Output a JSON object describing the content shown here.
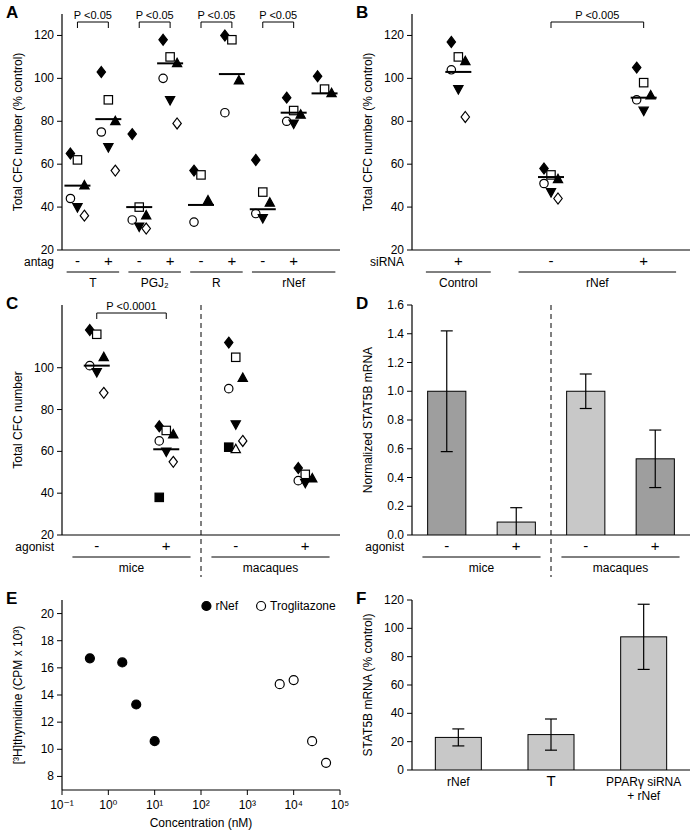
{
  "chart_data": [
    {
      "panel": "A",
      "type": "dot",
      "ylabel": "Total CFC number (% control)",
      "xlabel": "antag",
      "categories": [
        "-",
        "+",
        "-",
        "+",
        "-",
        "+",
        "-",
        "+",
        null
      ],
      "groups": [
        {
          "label": "T",
          "categories": [
            0,
            1
          ]
        },
        {
          "label": "PGJ₂",
          "categories": [
            2,
            3
          ]
        },
        {
          "label": "R",
          "categories": [
            4,
            5
          ]
        },
        {
          "label": "rNef",
          "categories": [
            6,
            7,
            8
          ]
        }
      ],
      "points": [
        [
          65,
          62,
          50,
          44,
          40,
          36
        ],
        [
          103,
          90,
          80,
          75,
          68,
          57
        ],
        [
          74,
          40,
          36,
          34,
          31,
          30
        ],
        [
          118,
          110,
          107,
          100,
          90,
          79
        ],
        [
          57,
          55,
          43,
          33
        ],
        [
          120,
          118,
          99,
          84
        ],
        [
          62,
          47,
          42,
          37,
          35
        ],
        [
          91,
          85,
          83,
          80,
          79
        ],
        [
          101,
          95,
          93
        ]
      ],
      "means": [
        50,
        81,
        40,
        107,
        41,
        102,
        39,
        84,
        93
      ],
      "comparisons": [
        {
          "label": "P <0.05",
          "between": [
            0,
            1
          ]
        },
        {
          "label": "P <0.05",
          "between": [
            2,
            3
          ]
        },
        {
          "label": "P <0.05",
          "between": [
            4,
            5
          ]
        },
        {
          "label": "P <0.05",
          "between": [
            6,
            7
          ]
        }
      ],
      "ylim": [
        20,
        130
      ],
      "yticks": [
        20,
        40,
        60,
        80,
        100,
        120
      ]
    },
    {
      "panel": "B",
      "type": "dot",
      "ylabel": "Total CFC number (% control)",
      "xlabel": "siRNA",
      "categories": [
        "+",
        "-",
        "+"
      ],
      "groups": [
        {
          "label": "Control",
          "categories": [
            0
          ]
        },
        {
          "label": "rNef",
          "categories": [
            1,
            2
          ]
        }
      ],
      "points": [
        [
          117,
          110,
          108,
          104,
          95,
          82
        ],
        [
          58,
          55,
          53,
          51,
          47,
          44
        ],
        [
          105,
          98,
          92,
          90,
          85
        ]
      ],
      "means": [
        103,
        54,
        91
      ],
      "comparisons": [
        {
          "label": "P <0.005",
          "between": [
            1,
            2
          ]
        }
      ],
      "ylim": [
        20,
        130
      ],
      "yticks": [
        20,
        40,
        60,
        80,
        100,
        120
      ]
    },
    {
      "panel": "C",
      "type": "dot",
      "ylabel": "Total CFC number",
      "xlabel": "agonist",
      "categories": [
        "-",
        "+",
        "-",
        "+"
      ],
      "groups": [
        {
          "label": "mice",
          "categories": [
            0,
            1
          ]
        },
        {
          "label": "macaques",
          "categories": [
            2,
            3
          ]
        }
      ],
      "points": [
        [
          118,
          116,
          105,
          101,
          98,
          88
        ],
        [
          72,
          70,
          68,
          65,
          60,
          55,
          38
        ],
        [
          112,
          105,
          95,
          90,
          73,
          65,
          62,
          61
        ],
        [
          52,
          49,
          47,
          46,
          45
        ]
      ],
      "means": [
        101,
        61,
        null,
        null
      ],
      "comparisons": [
        {
          "label": "P <0.0001",
          "between": [
            0,
            1
          ]
        }
      ],
      "ylim": [
        20,
        130
      ],
      "yticks": [
        20,
        40,
        60,
        80,
        100
      ]
    },
    {
      "panel": "D",
      "type": "bar",
      "ylabel": "Normalized STAT5B mRNA",
      "xlabel": "agonist",
      "categories": [
        "-",
        "+",
        "-",
        "+"
      ],
      "groups": [
        {
          "label": "mice",
          "categories": [
            0,
            1
          ]
        },
        {
          "label": "macaques",
          "categories": [
            2,
            3
          ]
        }
      ],
      "values": [
        1,
        0.09,
        1,
        0.53
      ],
      "errors": [
        0.42,
        0.1,
        0.12,
        0.2
      ],
      "colors": [
        "#9e9e9e",
        "#c8c8c8",
        "#c8c8c8",
        "#9e9e9e"
      ],
      "ylim": [
        0,
        1.6
      ],
      "yticks": [
        {
          "value": 0,
          "label": "0.0"
        },
        0.2,
        0.4,
        0.6,
        0.8,
        {
          "value": 1,
          "label": "1.0"
        },
        1.2,
        1.4,
        1.6
      ]
    },
    {
      "panel": "E",
      "type": "scatter",
      "log": "x",
      "ylabel": "[³H]thymidine (CPM x 10³)",
      "xlabel": "Concentration (nM)",
      "series": [
        {
          "name": "rNef",
          "color": "#000000",
          "x": [
            0.4,
            2,
            4,
            10
          ],
          "values": [
            16.7,
            16.4,
            13.3,
            10.6
          ]
        },
        {
          "name": "Troglitazone",
          "color": "#ffffff",
          "x": [
            5000,
            10000,
            25000,
            50000
          ],
          "values": [
            14.8,
            15.1,
            10.6,
            9
          ]
        }
      ],
      "xlim": [
        0.1,
        100000
      ],
      "xticks": [
        {
          "value": 0.1,
          "label": "10⁻¹"
        },
        {
          "value": 1,
          "label": "10⁰"
        },
        {
          "value": 10,
          "label": "10¹"
        },
        {
          "value": 100,
          "label": "10²"
        },
        {
          "value": 1000,
          "label": "10³"
        },
        {
          "value": 10000,
          "label": "10⁴"
        },
        {
          "value": 100000,
          "label": "10⁵"
        }
      ],
      "ylim": [
        7,
        21
      ],
      "yticks": [
        8,
        10,
        12,
        14,
        16,
        18,
        20
      ],
      "legend": "top-right"
    },
    {
      "panel": "F",
      "type": "bar",
      "ylabel": "STAT5B mRNA (% control)",
      "categories": [
        "rNef",
        "T",
        "PPARγ siRNA + rNef"
      ],
      "values": [
        23,
        25,
        94
      ],
      "errors": [
        6,
        11,
        23
      ],
      "color": "#c8c8c8",
      "ylim": [
        0,
        120
      ],
      "yticks": [
        0,
        20,
        40,
        60,
        80,
        100,
        120
      ]
    }
  ]
}
